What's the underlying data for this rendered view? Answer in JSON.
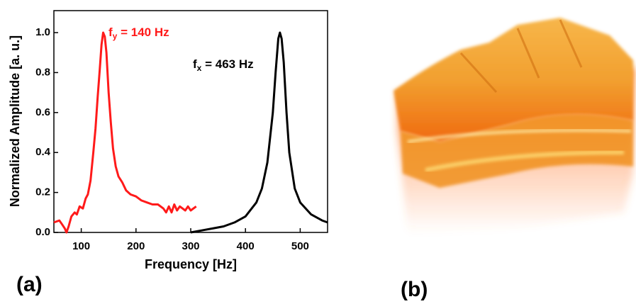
{
  "chart_data": {
    "type": "line",
    "xlabel": "Frequency [Hz]",
    "ylabel": "Normalized Amplitude [a. u.]",
    "xlim": [
      50,
      550
    ],
    "xticks": [
      100,
      200,
      300,
      400,
      500
    ],
    "ylim": [
      0,
      1.11
    ],
    "yticks": [
      {
        "value": 0,
        "label": "0.0"
      },
      {
        "value": 0.2,
        "label": "0.2"
      },
      {
        "value": 0.4,
        "label": "0.4"
      },
      {
        "value": 0.6,
        "label": "0.6"
      },
      {
        "value": 0.8,
        "label": "0.8"
      },
      {
        "value": 1,
        "label": "1.0"
      }
    ],
    "series": [
      {
        "color": "#ff1a1a",
        "x": [
          50,
          60,
          65,
          70,
          73,
          77,
          82,
          88,
          92,
          97,
          103,
          108,
          112,
          117,
          122,
          126,
          130,
          134,
          137,
          140,
          143,
          146,
          150,
          154,
          158,
          163,
          168,
          175,
          182,
          190,
          200,
          210,
          220,
          230,
          240,
          250,
          255,
          260,
          265,
          270,
          275,
          280,
          290,
          295,
          300,
          310
        ],
        "values": [
          0.05,
          0.06,
          0.04,
          0.02,
          0.0,
          0.03,
          0.08,
          0.1,
          0.09,
          0.13,
          0.12,
          0.17,
          0.19,
          0.26,
          0.4,
          0.52,
          0.68,
          0.82,
          0.94,
          1.0,
          0.98,
          0.9,
          0.7,
          0.55,
          0.42,
          0.33,
          0.28,
          0.25,
          0.21,
          0.19,
          0.18,
          0.16,
          0.15,
          0.14,
          0.14,
          0.12,
          0.1,
          0.13,
          0.1,
          0.14,
          0.11,
          0.13,
          0.11,
          0.13,
          0.11,
          0.13
        ]
      },
      {
        "color": "#000000",
        "x": [
          300,
          320,
          340,
          360,
          380,
          400,
          420,
          430,
          440,
          450,
          455,
          460,
          463,
          466,
          470,
          475,
          480,
          490,
          500,
          520,
          540,
          550
        ],
        "values": [
          0.0,
          0.01,
          0.02,
          0.03,
          0.05,
          0.08,
          0.15,
          0.22,
          0.35,
          0.6,
          0.8,
          0.97,
          1.0,
          0.97,
          0.85,
          0.6,
          0.4,
          0.22,
          0.15,
          0.09,
          0.06,
          0.05
        ]
      }
    ],
    "annotations": [
      {
        "text": "f",
        "sub": "y",
        "rest": " = 140 Hz",
        "color": "#ff1a1a"
      },
      {
        "text": "f",
        "sub": "x",
        "rest": " = 463 Hz",
        "color": "#000000"
      }
    ]
  },
  "panel_labels": [
    "(a)",
    "(b)"
  ]
}
